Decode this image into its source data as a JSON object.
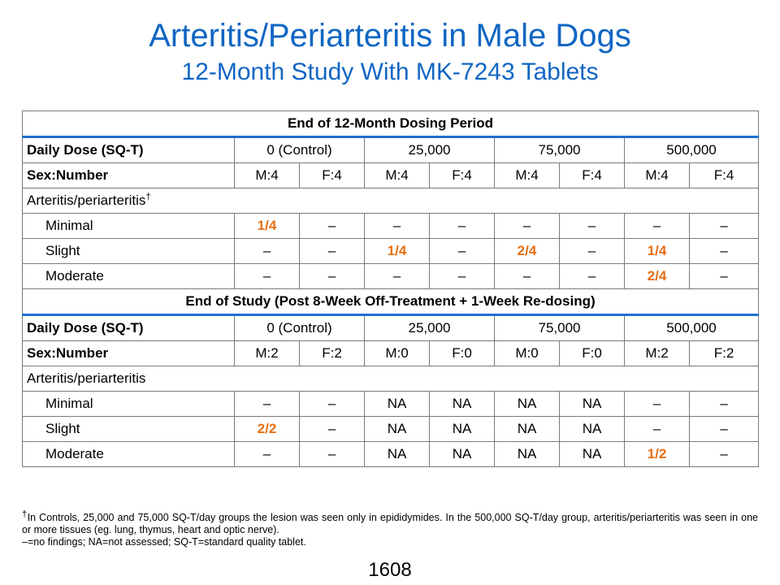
{
  "title": "Arteritis/Periarteritis in Male Dogs",
  "subtitle": "12-Month Study With MK-7243 Tablets",
  "section1": {
    "heading": "End of 12-Month Dosing Period",
    "dose_label": "Daily Dose (SQ-T)",
    "doses": [
      "0 (Control)",
      "25,000",
      "75,000",
      "500,000"
    ],
    "sex_label": "Sex:Number",
    "sexes": [
      "M:4",
      "F:4",
      "M:4",
      "F:4",
      "M:4",
      "F:4",
      "M:4",
      "F:4"
    ],
    "finding_label": "Arteritis/periarteritis",
    "finding_mark": "†",
    "rows": [
      {
        "label": "Minimal",
        "values": [
          "1/4",
          "–",
          "–",
          "–",
          "–",
          "–",
          "–",
          "–"
        ]
      },
      {
        "label": "Slight",
        "values": [
          "–",
          "–",
          "1/4",
          "–",
          "2/4",
          "–",
          "1/4",
          "–"
        ]
      },
      {
        "label": "Moderate",
        "values": [
          "–",
          "–",
          "–",
          "–",
          "–",
          "–",
          "2/4",
          "–"
        ]
      }
    ]
  },
  "section2": {
    "heading": "End of Study (Post 8-Week Off-Treatment + 1-Week Re-dosing)",
    "dose_label": "Daily Dose (SQ-T)",
    "doses": [
      "0 (Control)",
      "25,000",
      "75,000",
      "500,000"
    ],
    "sex_label": "Sex:Number",
    "sexes": [
      "M:2",
      "F:2",
      "M:0",
      "F:0",
      "M:0",
      "F:0",
      "M:2",
      "F:2"
    ],
    "finding_label": "Arteritis/periarteritis",
    "rows": [
      {
        "label": "Minimal",
        "values": [
          "–",
          "–",
          "NA",
          "NA",
          "NA",
          "NA",
          "–",
          "–"
        ]
      },
      {
        "label": "Slight",
        "values": [
          "2/2",
          "–",
          "NA",
          "NA",
          "NA",
          "NA",
          "–",
          "–"
        ]
      },
      {
        "label": "Moderate",
        "values": [
          "–",
          "–",
          "NA",
          "NA",
          "NA",
          "NA",
          "1/2",
          "–"
        ]
      }
    ]
  },
  "highlight_color": "#e76f13",
  "title_color": "#1066c4",
  "footnotes": {
    "mark": "†",
    "line1": "In Controls, 25,000 and 75,000 SQ-T/day groups the lesion was seen only in epididymides. In the 500,000 SQ-T/day group, arteritis/periarteritis was seen in one or more tissues (eg. lung, thymus,  heart and optic nerve).",
    "line2": "–=no findings; NA=not assessed; SQ-T=standard quality tablet."
  },
  "page_number": "1608"
}
